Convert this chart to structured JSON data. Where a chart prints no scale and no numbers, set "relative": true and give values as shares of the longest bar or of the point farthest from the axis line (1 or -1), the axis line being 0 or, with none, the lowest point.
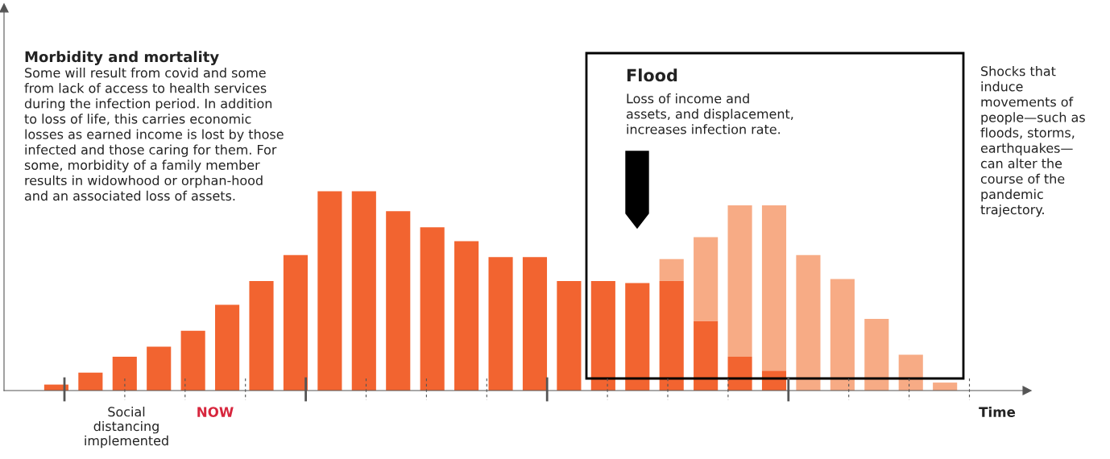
{
  "chart_data": {
    "type": "bar",
    "relative": true,
    "stacked": true,
    "title": "Morbidity and mortality",
    "xlabel": "Time",
    "categories": [
      null,
      null,
      null,
      null,
      null,
      null,
      null,
      null,
      null,
      null,
      null,
      null,
      null,
      null,
      null,
      null,
      null,
      null,
      null,
      null,
      null,
      null,
      null,
      null,
      null,
      null,
      null
    ],
    "series": [
      {
        "color": "#f26430",
        "values": [
          0.03,
          0.09,
          0.17,
          0.22,
          0.3,
          0.43,
          0.55,
          0.68,
          1,
          1,
          0.9,
          0.82,
          0.75,
          0.67,
          0.67,
          0.55,
          0.55,
          0.54,
          0.55,
          0.35,
          0.17,
          0.1,
          0,
          0,
          0,
          0,
          0
        ]
      },
      {
        "color": "#f7ab85",
        "values": [
          0,
          0,
          0,
          0,
          0,
          0,
          0,
          0,
          0,
          0,
          0,
          0,
          0,
          0,
          0,
          0,
          0,
          0,
          0.11,
          0.42,
          0.76,
          0.83,
          0.68,
          0.56,
          0.36,
          0.18,
          0.04
        ]
      }
    ],
    "annotations": [
      "Some will result from covid and some\nfrom lack of access to health services\nduring the infection period. In addition\nto loss of life, this carries economic\nlosses as earned income is lost by those\ninfected and those caring for them. For\nsome, morbidity of a family member\nresults in widowhood or orphan-hood\nand an associated loss of assets.",
      "Flood",
      "Loss of income and\nassets, and displacement,\nincreases infection rate.",
      "Shocks that\ninduce\nmovements of\npeople—such as\nfloods, storms,\nearthquakes—\ncan alter the\ncourse of the\npandemic\ntrajectory.",
      "Social\ndistancing\nimplemented",
      "NOW"
    ],
    "grid": false
  }
}
